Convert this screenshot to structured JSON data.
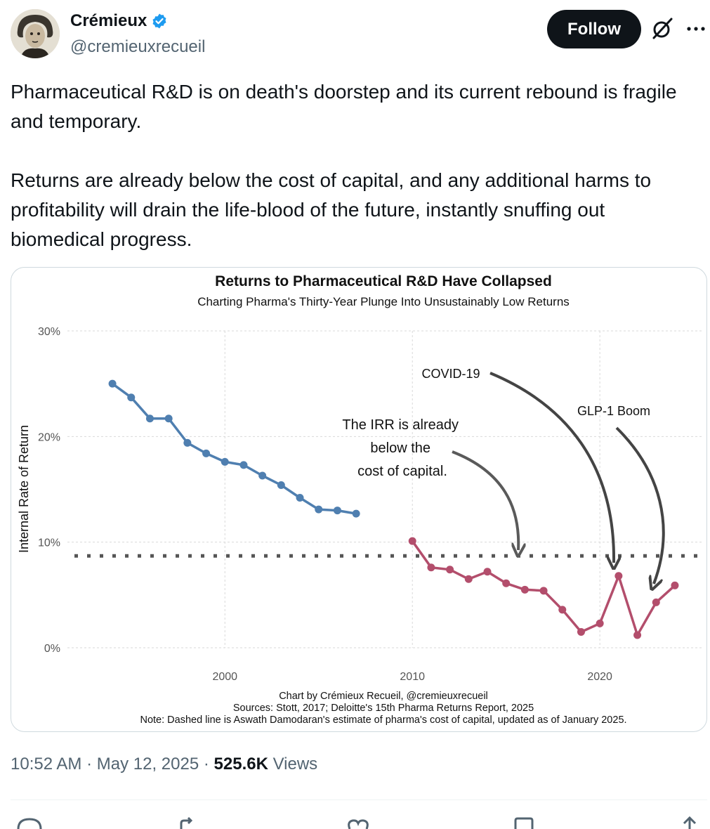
{
  "author": {
    "display_name": "Crémieux",
    "handle": "@cremieuxrecueil",
    "verified_icon": "verified-badge-icon",
    "avatar_icon": "avatar-portrait"
  },
  "header": {
    "follow_label": "Follow",
    "grok_icon": "grok-icon",
    "more_icon": "more-options-icon"
  },
  "tweet": {
    "paragraphs": [
      "Pharmaceutical R&D is on death's doorstep and its current rebound is fragile and temporary.",
      "Returns are already below the cost of capital, and any additional harms to profitability will drain the life-blood of the future, instantly snuffing out biomedical progress."
    ]
  },
  "meta": {
    "time": "10:52 AM",
    "date": "May 12, 2025",
    "separator": "·",
    "views_count": "525.6K",
    "views_label": "Views"
  },
  "actions": [
    "reply-icon",
    "retweet-icon",
    "like-icon",
    "bookmark-icon",
    "share-icon"
  ],
  "chart_data": {
    "type": "line",
    "title": "Returns to Pharmaceutical R&D Have Collapsed",
    "subtitle": "Charting Pharma's Thirty-Year Plunge Into Unsustainably Low Returns",
    "ylabel": "Internal Rate of Return",
    "xlabel": "",
    "xlim": [
      1991.6,
      2025.5
    ],
    "ylim": [
      0,
      30
    ],
    "x_ticks": [
      2000,
      2010,
      2020
    ],
    "y_ticks": [
      0,
      10,
      20,
      30
    ],
    "y_tick_labels": [
      "0%",
      "10%",
      "20%",
      "30%"
    ],
    "grid": true,
    "series": [
      {
        "color": "#4f7fb0",
        "x": [
          1994,
          1995,
          1996,
          1997,
          1998,
          1999,
          2000,
          2001,
          2002,
          2003,
          2004,
          2005,
          2006,
          2007
        ],
        "values": [
          25.0,
          23.7,
          21.7,
          21.7,
          19.4,
          18.4,
          17.6,
          17.3,
          16.3,
          15.4,
          14.2,
          13.1,
          13.0,
          12.7
        ]
      },
      {
        "color": "#b34e6c",
        "x": [
          2010,
          2011,
          2012,
          2013,
          2014,
          2015,
          2016,
          2017,
          2018,
          2019,
          2020,
          2021,
          2022,
          2023,
          2024
        ],
        "values": [
          10.1,
          7.6,
          7.4,
          6.5,
          7.2,
          6.1,
          5.5,
          5.4,
          3.6,
          1.5,
          2.3,
          6.8,
          1.2,
          4.3,
          5.9
        ]
      }
    ],
    "reference_line": {
      "y": 8.7,
      "style": "dotted",
      "color": "#555555"
    },
    "annotations": [
      {
        "lines": [
          "The IRR is already",
          "below the",
          "cost of capital."
        ]
      },
      {
        "lines": [
          "COVID-19"
        ]
      },
      {
        "lines": [
          "GLP-1 Boom"
        ]
      }
    ],
    "caption": [
      "Chart by Crémieux Recueil, @cremieuxrecueil",
      "Sources: Stott, 2017; Deloitte's 15th Pharma Returns Report, 2025",
      "Note: Dashed line is Aswath Damodaran's estimate of pharma's cost of capital, updated as of January 2025."
    ]
  }
}
